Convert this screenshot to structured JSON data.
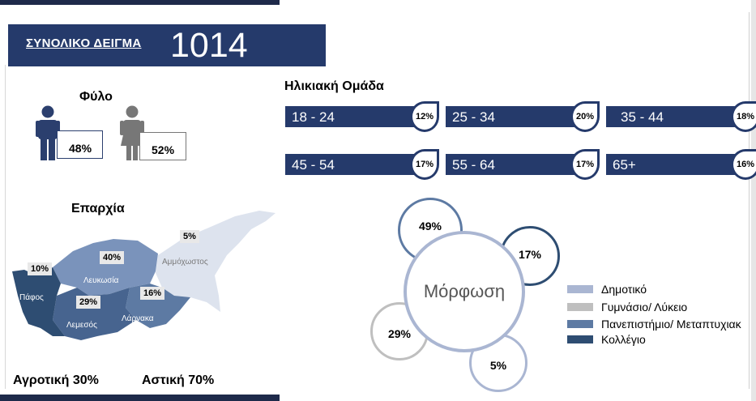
{
  "sample": {
    "label": "ΣΥΝΟΛΙΚΟ ΔΕΙΓΜΑ",
    "value": "1014"
  },
  "gender": {
    "title": "Φύλο",
    "male_pct": "48%",
    "female_pct": "52%"
  },
  "age": {
    "title": "Ηλικιακή Ομάδα",
    "groups": [
      {
        "label": "18 - 24",
        "pct": "12%"
      },
      {
        "label": "25 - 34",
        "pct": "20%"
      },
      {
        "label": "35 - 44",
        "pct": "18%"
      },
      {
        "label": "45 - 54",
        "pct": "17%"
      },
      {
        "label": "55 - 64",
        "pct": "17%"
      },
      {
        "label": "65+",
        "pct": "16%"
      }
    ]
  },
  "district": {
    "title": "Επαρχία",
    "regions": [
      {
        "name": "Πάφος",
        "pct": "10%"
      },
      {
        "name": "Λευκωσία",
        "pct": "40%"
      },
      {
        "name": "Λεμεσός",
        "pct": "29%"
      },
      {
        "name": "Λάρνακα",
        "pct": "16%"
      },
      {
        "name": "Αμμόχωστος",
        "pct": "5%"
      }
    ]
  },
  "area": {
    "rural": "Αγροτική 30%",
    "urban": "Αστική  70%"
  },
  "education": {
    "title": "Μόρφωση",
    "items": [
      {
        "label": "Δημοτικό",
        "pct": "5%",
        "color": "#aab6d2"
      },
      {
        "label": "Γυμνάσιο/ Λύκειο",
        "pct": "29%",
        "color": "#bfbfbf"
      },
      {
        "label": "Πανεπιστήμιο/ Μεταπτυχιακ",
        "pct": "49%",
        "color": "#5d7aa3"
      },
      {
        "label": "Κολλέγιο",
        "pct": "17%",
        "color": "#2e4d72"
      }
    ]
  }
}
